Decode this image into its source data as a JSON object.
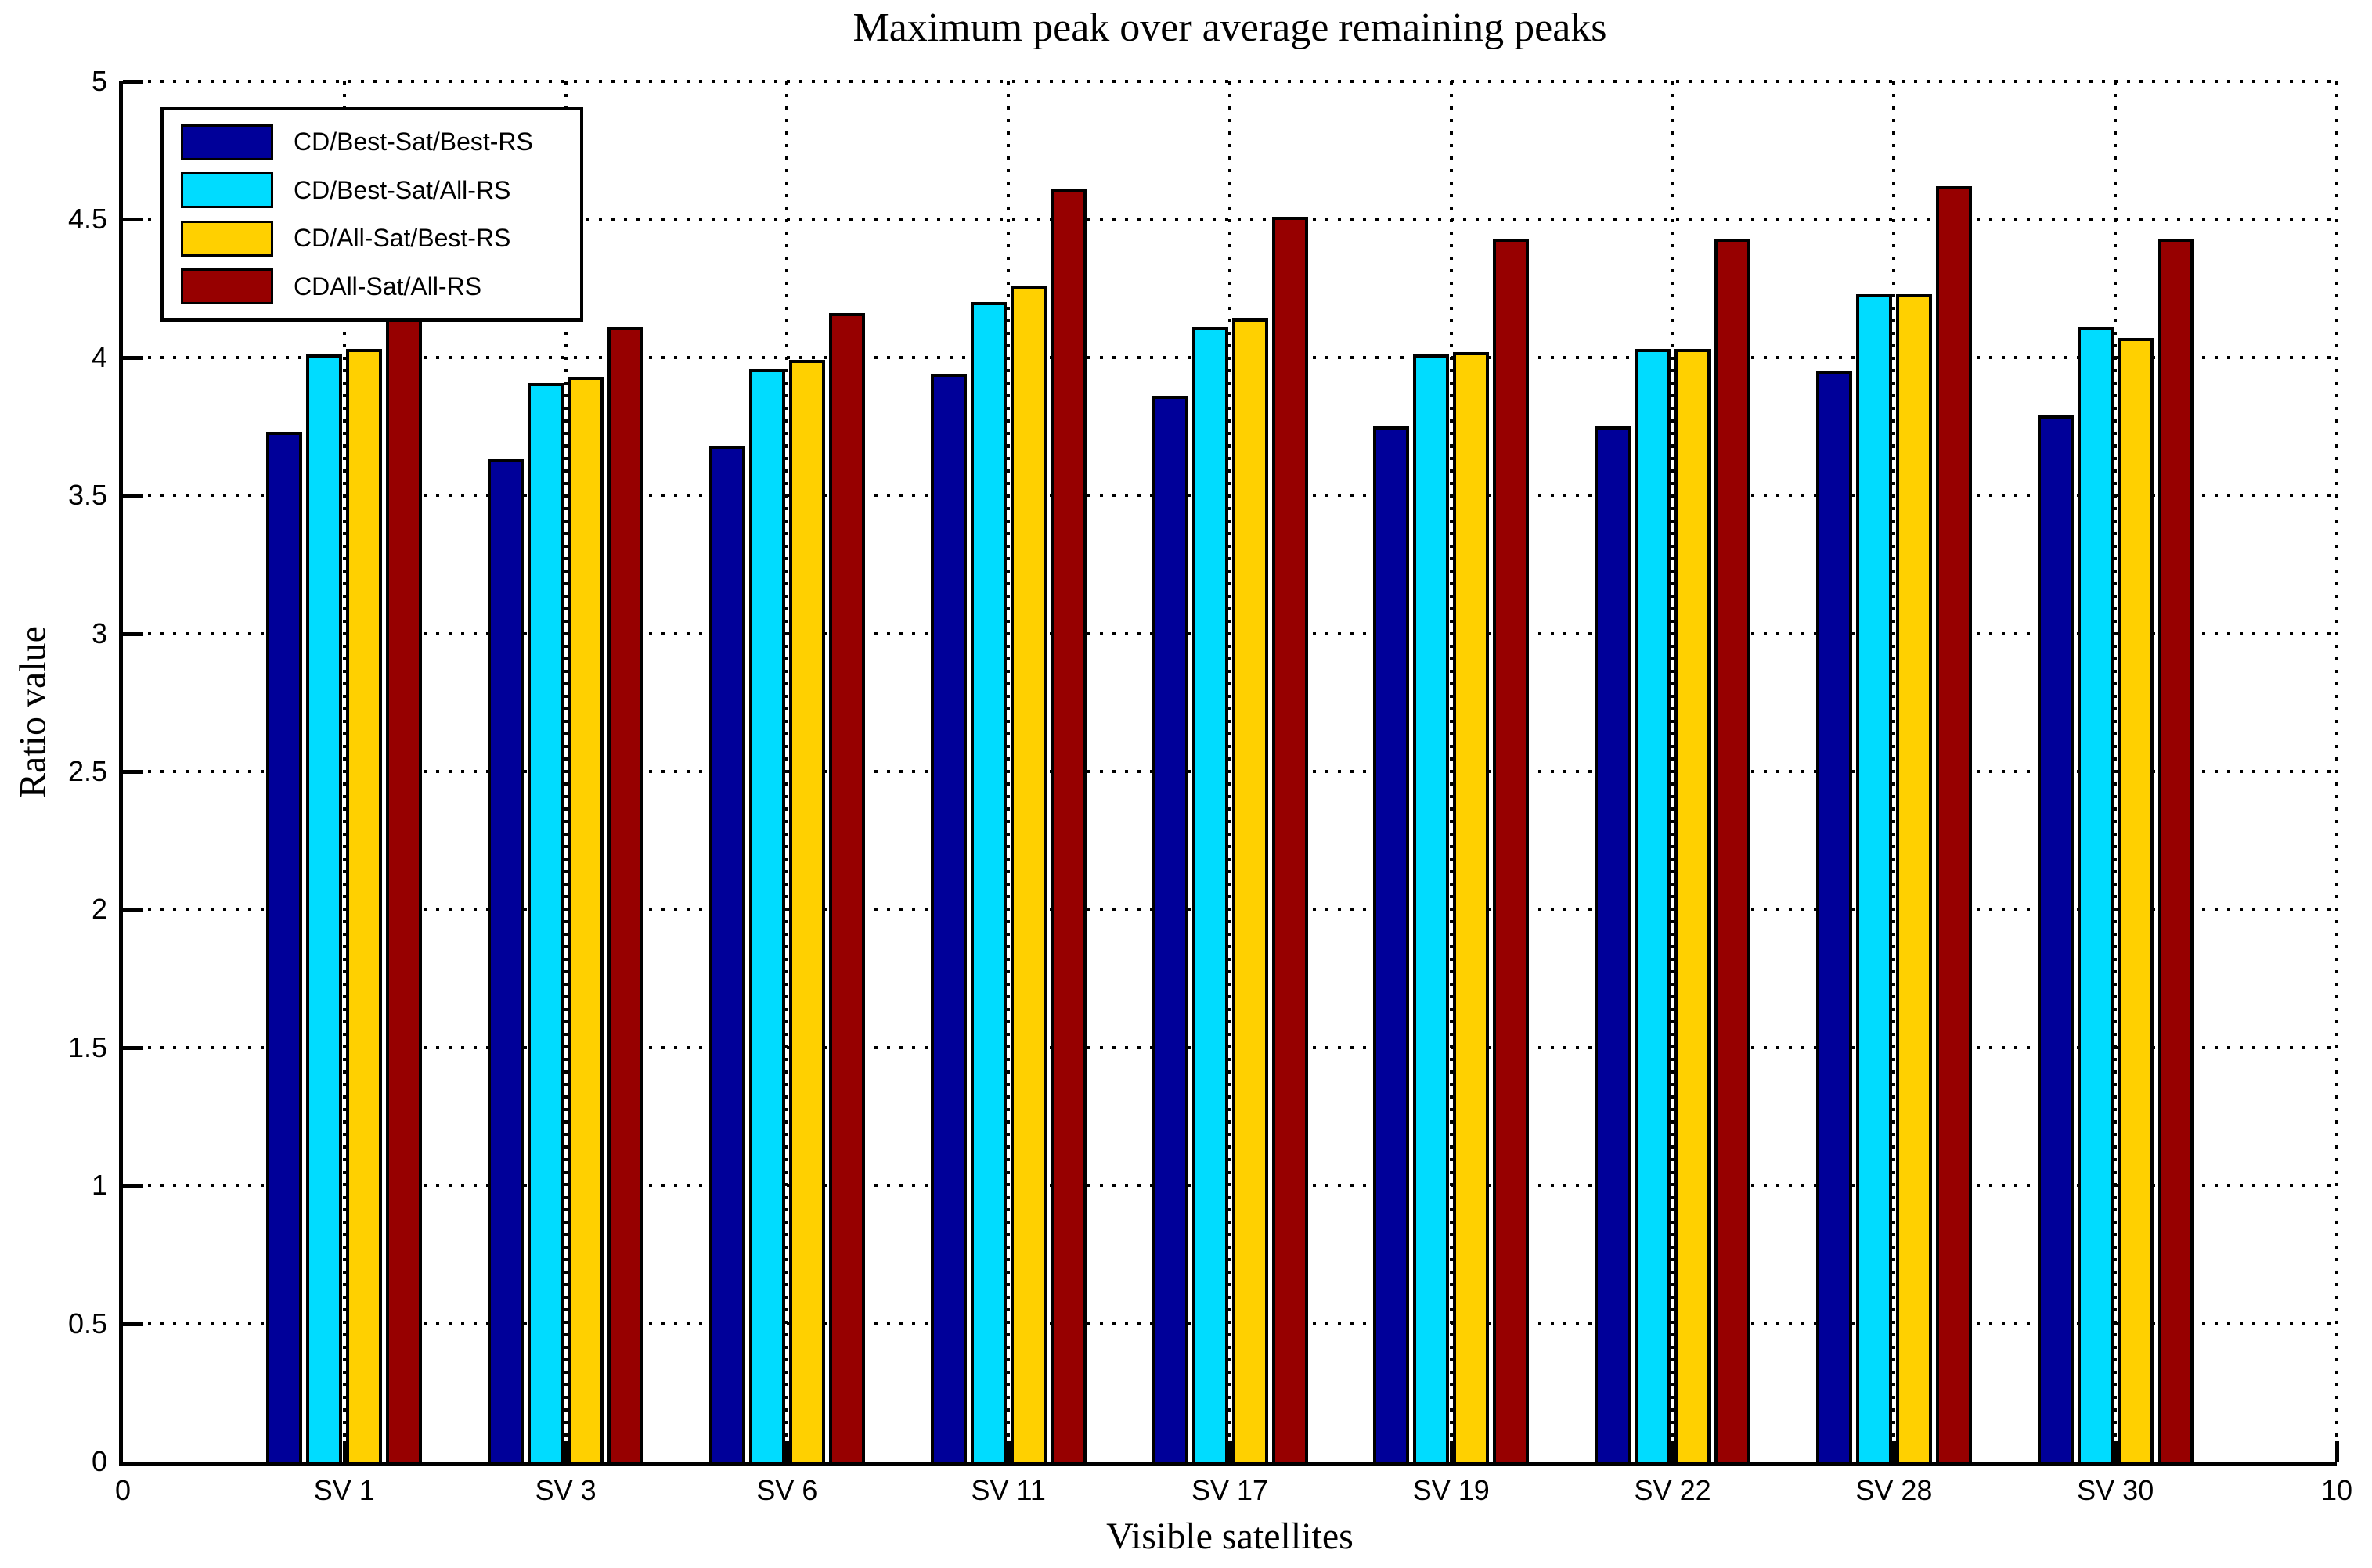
{
  "title": "Maximum peak over average remaining peaks",
  "chart_data": {
    "type": "bar",
    "title": "Maximum peak over average remaining peaks",
    "xlabel": "Visible satellites",
    "ylabel": "Ratio value",
    "ylim": [
      0,
      5
    ],
    "xlim": [
      0,
      10
    ],
    "grid": "dotted",
    "legend_position": "top-left",
    "yticks": [
      0,
      0.5,
      1,
      1.5,
      2,
      2.5,
      3,
      3.5,
      4,
      4.5,
      5
    ],
    "ytick_labels": [
      "0",
      "0.5",
      "1",
      "1.5",
      "2",
      "2.5",
      "3",
      "3.5",
      "4",
      "4.5",
      "5"
    ],
    "x_end_labels": [
      "0",
      "10"
    ],
    "categories": [
      "SV 1",
      "SV 3",
      "SV 6",
      "SV 11",
      "SV 17",
      "SV 19",
      "SV 22",
      "SV 28",
      "SV 30"
    ],
    "category_positions": [
      1,
      2,
      3,
      4,
      5,
      6,
      7,
      8,
      9
    ],
    "series": [
      {
        "name": "CD/Best-Sat/Best-RS",
        "color": "#000099",
        "values": [
          3.73,
          3.63,
          3.68,
          3.94,
          3.86,
          3.75,
          3.75,
          3.95,
          3.79
        ]
      },
      {
        "name": "CD/Best-Sat/All-RS",
        "color": "#00DCFF",
        "values": [
          4.01,
          3.91,
          3.96,
          4.2,
          4.11,
          4.01,
          4.03,
          4.23,
          4.11
        ]
      },
      {
        "name": "CD/All-Sat/Best-RS",
        "color": "#FFD000",
        "values": [
          4.03,
          3.93,
          3.99,
          4.26,
          4.14,
          4.02,
          4.03,
          4.23,
          4.07
        ]
      },
      {
        "name": "CDAll-Sat/All-RS",
        "color": "#970000",
        "values": [
          4.21,
          4.11,
          4.16,
          4.61,
          4.51,
          4.43,
          4.43,
          4.62,
          4.43
        ]
      }
    ]
  }
}
